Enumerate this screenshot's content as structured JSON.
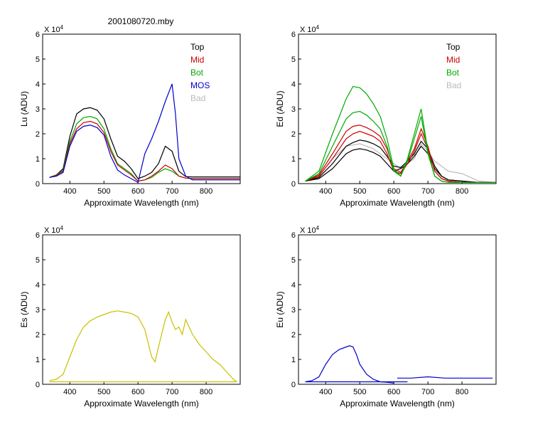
{
  "figure": {
    "title": "2001080720.mby"
  },
  "chart_data": [
    {
      "type": "line",
      "panel": "top-left",
      "xlabel": "Approximate Wavelength (nm)",
      "ylabel": "Lu (ADU)",
      "y_scale_label": "X 10",
      "y_scale_exp": "4",
      "xlim": [
        320,
        900
      ],
      "ylim": [
        0,
        6
      ],
      "xticks": [
        "400",
        "500",
        "600",
        "700",
        "800"
      ],
      "yticks": [
        "0",
        "1",
        "2",
        "3",
        "4",
        "5",
        "6"
      ],
      "legend": [
        {
          "label": "Top",
          "color": "#000000"
        },
        {
          "label": "Mid",
          "color": "#cc0000"
        },
        {
          "label": "Bot",
          "color": "#00aa00"
        },
        {
          "label": "MOS",
          "color": "#0000cc"
        },
        {
          "label": "Bad",
          "color": "#bbbbbb"
        }
      ],
      "series": [
        {
          "color": "#000000",
          "x": [
            340,
            360,
            380,
            400,
            420,
            440,
            460,
            480,
            500,
            520,
            540,
            560,
            580,
            600,
            620,
            640,
            660,
            680,
            700,
            720,
            740,
            760,
            800,
            850,
            900
          ],
          "y": [
            0.25,
            0.35,
            0.6,
            1.9,
            2.8,
            3.0,
            3.05,
            2.95,
            2.6,
            1.8,
            1.1,
            0.9,
            0.6,
            0.2,
            0.3,
            0.45,
            0.8,
            1.5,
            1.3,
            0.5,
            0.28,
            0.27,
            0.27,
            0.27,
            0.27
          ]
        },
        {
          "color": "#00aa00",
          "x": [
            340,
            360,
            380,
            400,
            420,
            440,
            460,
            480,
            500,
            520,
            540,
            560,
            580,
            600,
            620,
            640,
            660,
            680,
            700,
            720,
            740,
            760,
            800,
            850,
            900
          ],
          "y": [
            0.25,
            0.35,
            0.55,
            1.7,
            2.4,
            2.65,
            2.7,
            2.6,
            2.2,
            1.4,
            0.8,
            0.6,
            0.4,
            0.1,
            0.15,
            0.25,
            0.45,
            0.6,
            0.5,
            0.3,
            0.22,
            0.2,
            0.2,
            0.2,
            0.2
          ]
        },
        {
          "color": "#cc0000",
          "x": [
            340,
            360,
            380,
            400,
            420,
            440,
            460,
            480,
            500,
            520,
            540,
            560,
            580,
            600,
            620,
            640,
            660,
            680,
            700,
            720,
            740,
            760,
            800,
            850,
            900
          ],
          "y": [
            0.25,
            0.33,
            0.5,
            1.6,
            2.2,
            2.45,
            2.5,
            2.4,
            2.05,
            1.3,
            0.75,
            0.55,
            0.35,
            0.1,
            0.15,
            0.3,
            0.5,
            0.75,
            0.6,
            0.3,
            0.22,
            0.2,
            0.2,
            0.2,
            0.2
          ]
        },
        {
          "color": "#0000cc",
          "x": [
            340,
            360,
            380,
            400,
            420,
            440,
            460,
            480,
            500,
            520,
            540,
            560,
            580,
            600,
            620,
            640,
            660,
            680,
            700,
            710,
            720,
            740,
            760,
            800,
            850,
            900
          ],
          "y": [
            0.25,
            0.3,
            0.45,
            1.5,
            2.1,
            2.3,
            2.35,
            2.25,
            1.95,
            1.1,
            0.55,
            0.35,
            0.2,
            0.05,
            1.2,
            1.8,
            2.5,
            3.3,
            4.0,
            2.8,
            1.0,
            0.3,
            0.15,
            0.15,
            0.15,
            0.15
          ]
        }
      ]
    },
    {
      "type": "line",
      "panel": "top-right",
      "xlabel": "Approximate Wavelength (nm)",
      "ylabel": "Ed (ADU)",
      "y_scale_label": "X 10",
      "y_scale_exp": "4",
      "xlim": [
        320,
        900
      ],
      "ylim": [
        0,
        6
      ],
      "xticks": [
        "400",
        "500",
        "600",
        "700",
        "800"
      ],
      "yticks": [
        "0",
        "1",
        "2",
        "3",
        "4",
        "5",
        "6"
      ],
      "legend": [
        {
          "label": "Top",
          "color": "#000000"
        },
        {
          "label": "Mid",
          "color": "#cc0000"
        },
        {
          "label": "Bot",
          "color": "#00aa00"
        },
        {
          "label": "Bad",
          "color": "#bbbbbb"
        }
      ],
      "series": [
        {
          "color": "#bbbbbb",
          "x": [
            340,
            380,
            420,
            460,
            500,
            540,
            580,
            620,
            660,
            680,
            700,
            720,
            760,
            800,
            850,
            900
          ],
          "y": [
            0.1,
            0.3,
            1.0,
            1.5,
            1.6,
            1.4,
            1.0,
            0.6,
            1.0,
            1.6,
            1.3,
            0.9,
            0.5,
            0.4,
            0.1,
            0.05
          ]
        },
        {
          "color": "#000000",
          "x": [
            340,
            380,
            420,
            460,
            480,
            500,
            520,
            540,
            560,
            580,
            600,
            620,
            640,
            660,
            680,
            700,
            720,
            740,
            760,
            800,
            850,
            900
          ],
          "y": [
            0.1,
            0.2,
            0.6,
            1.2,
            1.35,
            1.4,
            1.35,
            1.25,
            1.1,
            0.8,
            0.5,
            0.6,
            0.8,
            1.1,
            1.5,
            1.2,
            0.6,
            0.3,
            0.15,
            0.1,
            0.05,
            0.05
          ]
        },
        {
          "color": "#000000",
          "x": [
            340,
            380,
            420,
            460,
            480,
            500,
            520,
            540,
            560,
            580,
            600,
            620,
            640,
            660,
            680,
            700,
            720,
            740,
            760,
            800,
            850,
            900
          ],
          "y": [
            0.1,
            0.25,
            0.8,
            1.5,
            1.65,
            1.75,
            1.7,
            1.6,
            1.45,
            1.1,
            0.7,
            0.65,
            0.9,
            1.2,
            1.7,
            1.4,
            0.7,
            0.3,
            0.15,
            0.1,
            0.05,
            0.05
          ]
        },
        {
          "color": "#cc0000",
          "x": [
            340,
            380,
            420,
            460,
            480,
            500,
            520,
            540,
            560,
            580,
            600,
            620,
            640,
            660,
            680,
            700,
            720,
            740,
            760,
            800,
            850,
            900
          ],
          "y": [
            0.1,
            0.3,
            1.0,
            1.8,
            2.0,
            2.1,
            2.0,
            1.9,
            1.7,
            1.2,
            0.5,
            0.4,
            0.8,
            1.3,
            2.0,
            1.4,
            0.5,
            0.2,
            0.1,
            0.05,
            0.05,
            0.05
          ]
        },
        {
          "color": "#cc0000",
          "x": [
            340,
            380,
            420,
            460,
            480,
            500,
            520,
            540,
            560,
            580,
            600,
            620,
            640,
            660,
            680,
            700,
            720,
            740,
            760,
            800,
            850,
            900
          ],
          "y": [
            0.1,
            0.35,
            1.2,
            2.1,
            2.3,
            2.35,
            2.25,
            2.1,
            1.9,
            1.4,
            0.6,
            0.45,
            0.9,
            1.4,
            2.2,
            1.5,
            0.5,
            0.2,
            0.1,
            0.05,
            0.05,
            0.05
          ]
        },
        {
          "color": "#00aa00",
          "x": [
            340,
            380,
            420,
            460,
            480,
            500,
            520,
            540,
            560,
            580,
            600,
            620,
            640,
            660,
            680,
            700,
            720,
            740,
            760,
            800,
            850,
            900
          ],
          "y": [
            0.1,
            0.4,
            1.5,
            2.6,
            2.85,
            2.9,
            2.75,
            2.5,
            2.2,
            1.5,
            0.5,
            0.3,
            0.9,
            1.8,
            2.7,
            1.2,
            0.3,
            0.1,
            0.05,
            0.05,
            0.05,
            0.05
          ]
        },
        {
          "color": "#00aa00",
          "x": [
            340,
            380,
            420,
            460,
            480,
            500,
            520,
            540,
            560,
            580,
            600,
            620,
            640,
            660,
            680,
            700,
            720,
            740,
            760,
            800,
            850,
            900
          ],
          "y": [
            0.1,
            0.5,
            2.0,
            3.4,
            3.9,
            3.85,
            3.6,
            3.2,
            2.7,
            1.8,
            0.6,
            0.3,
            1.0,
            2.0,
            3.0,
            1.3,
            0.3,
            0.1,
            0.05,
            0.05,
            0.05,
            0.05
          ]
        }
      ]
    },
    {
      "type": "line",
      "panel": "bottom-left",
      "xlabel": "Approximate Wavelength (nm)",
      "ylabel": "Es (ADU)",
      "y_scale_label": "X 10",
      "y_scale_exp": "4",
      "xlim": [
        320,
        900
      ],
      "ylim": [
        0,
        6
      ],
      "xticks": [
        "400",
        "500",
        "600",
        "700",
        "800"
      ],
      "yticks": [
        "0",
        "1",
        "2",
        "3",
        "4",
        "5",
        "6"
      ],
      "series": [
        {
          "color": "#c8c000",
          "x": [
            340,
            360,
            380,
            400,
            420,
            440,
            460,
            480,
            500,
            520,
            540,
            560,
            580,
            600,
            620,
            640,
            650,
            660,
            680,
            690,
            700,
            710,
            720,
            730,
            740,
            760,
            780,
            800,
            820,
            840,
            860,
            880,
            890
          ],
          "y": [
            0.15,
            0.2,
            0.4,
            1.1,
            1.8,
            2.3,
            2.55,
            2.7,
            2.8,
            2.9,
            2.95,
            2.9,
            2.85,
            2.7,
            2.2,
            1.1,
            0.9,
            1.5,
            2.6,
            2.9,
            2.5,
            2.2,
            2.3,
            2.0,
            2.6,
            2.0,
            1.6,
            1.3,
            1.0,
            0.8,
            0.5,
            0.2,
            0.1
          ]
        },
        {
          "color": "#c8c000",
          "x": [
            340,
            400,
            500,
            600,
            700,
            800,
            890
          ],
          "y": [
            0.1,
            0.1,
            0.1,
            0.1,
            0.1,
            0.1,
            0.1
          ]
        }
      ]
    },
    {
      "type": "line",
      "panel": "bottom-right",
      "xlabel": "Approximate Wavelength (nm)",
      "ylabel": "Eu (ADU)",
      "y_scale_label": "X 10",
      "y_scale_exp": "4",
      "xlim": [
        320,
        900
      ],
      "ylim": [
        0,
        6
      ],
      "xticks": [
        "400",
        "500",
        "600",
        "700",
        "800"
      ],
      "yticks": [
        "0",
        "1",
        "2",
        "3",
        "4",
        "5",
        "6"
      ],
      "series": [
        {
          "color": "#0000cc",
          "x": [
            340,
            360,
            380,
            400,
            420,
            440,
            460,
            470,
            480,
            490,
            500,
            520,
            540,
            560,
            580,
            600
          ],
          "y": [
            0.1,
            0.15,
            0.3,
            0.8,
            1.2,
            1.4,
            1.5,
            1.55,
            1.5,
            1.2,
            0.8,
            0.4,
            0.2,
            0.1,
            0.08,
            0.05
          ]
        },
        {
          "color": "#0000cc",
          "x": [
            340,
            400,
            500,
            600,
            640
          ],
          "y": [
            0.1,
            0.1,
            0.1,
            0.1,
            0.1
          ]
        },
        {
          "color": "#0000cc",
          "x": [
            610,
            650,
            700,
            750,
            800,
            850,
            890
          ],
          "y": [
            0.25,
            0.25,
            0.3,
            0.25,
            0.25,
            0.25,
            0.25
          ]
        }
      ]
    }
  ]
}
